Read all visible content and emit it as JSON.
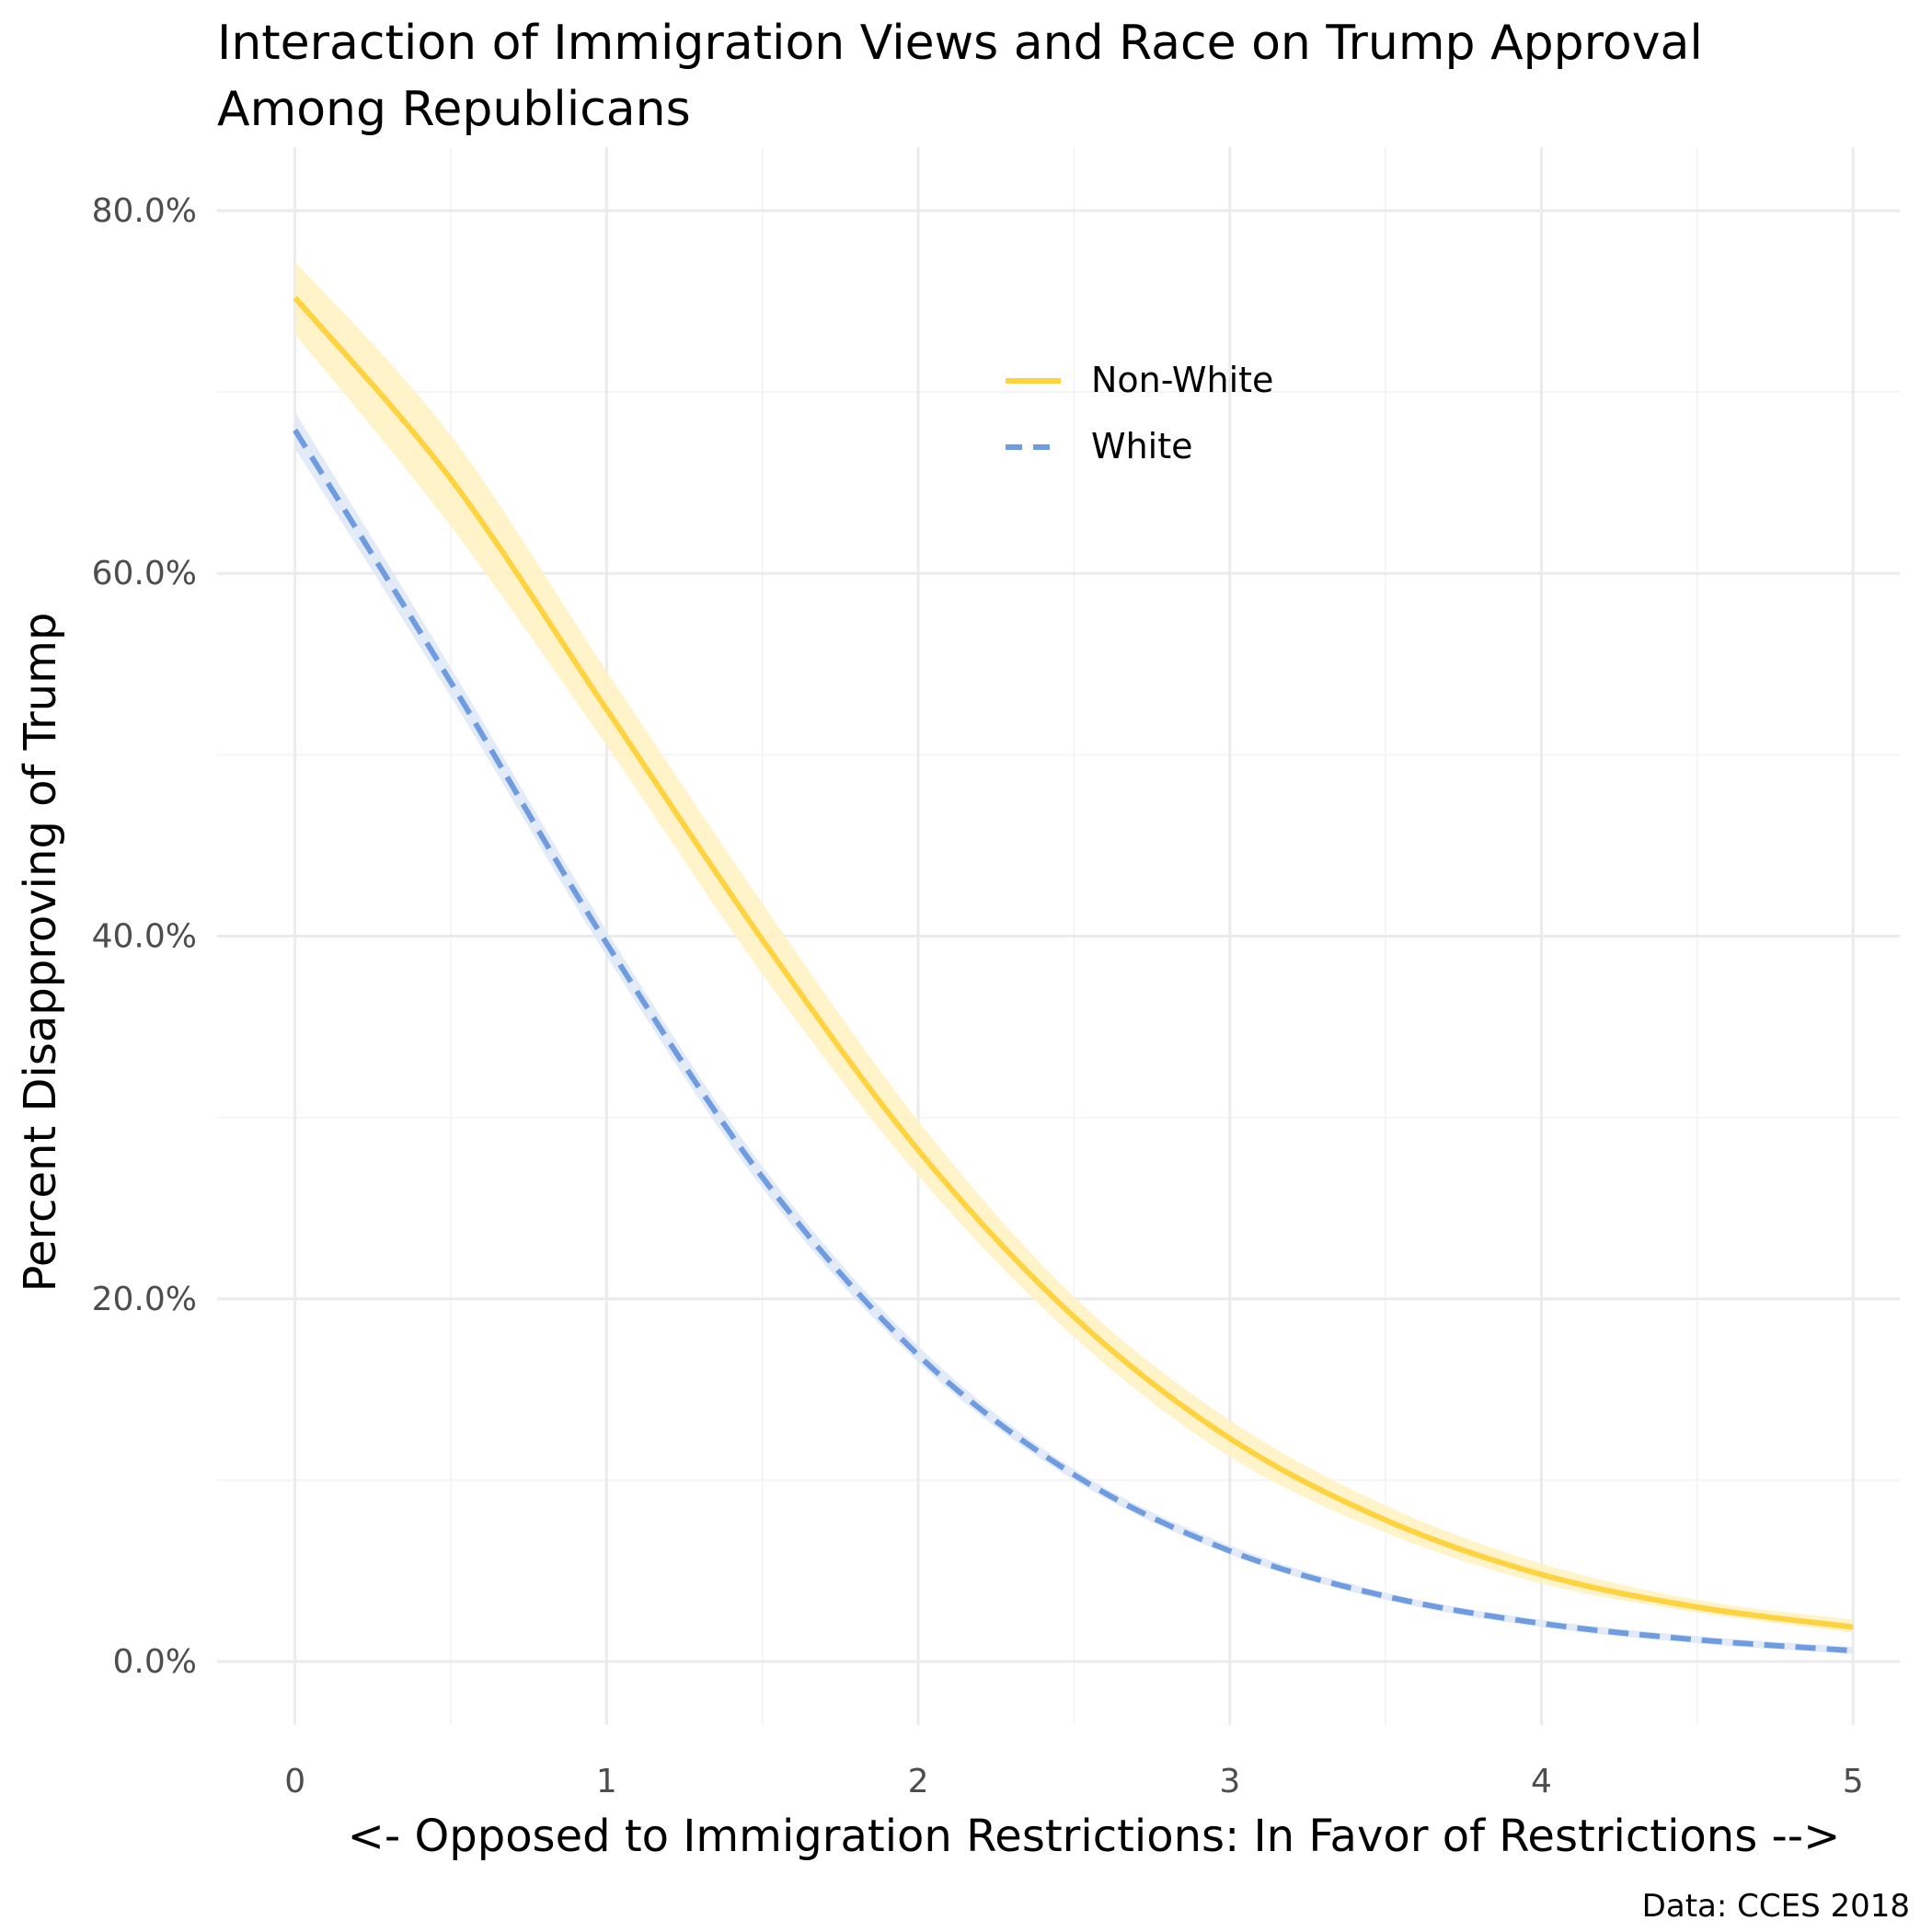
{
  "chart_data": {
    "type": "line",
    "title": "Interaction of Immigration Views and Race on Trump Approval",
    "subtitle": "Among Republicans",
    "xlabel": "<- Opposed to Immigration Restrictions: In Favor of Restrictions -->",
    "ylabel": "Percent Disapproving of Trump",
    "caption": "Data: CCES 2018",
    "xlim": [
      -0.25,
      5.15
    ],
    "ylim": [
      -3.5,
      83.5
    ],
    "x_ticks": [
      0,
      1,
      2,
      3,
      4,
      5
    ],
    "x_tick_labels": [
      "0",
      "1",
      "2",
      "3",
      "4",
      "5"
    ],
    "y_ticks": [
      0,
      20,
      40,
      60,
      80
    ],
    "y_tick_labels": [
      "0.0%",
      "20.0%",
      "40.0%",
      "60.0%",
      "80.0%"
    ],
    "grid": true,
    "legend_position": "top-right",
    "x": [
      0,
      0.5,
      1,
      1.5,
      2,
      2.5,
      3,
      3.5,
      4,
      4.5,
      5
    ],
    "series": [
      {
        "name": "Non-White",
        "color": "#FFD23F",
        "band_color": "#FFF1BF",
        "line_style": "solid",
        "values": [
          75.2,
          65.2,
          52.5,
          39.8,
          28.2,
          19.0,
          12.3,
          7.8,
          4.8,
          3.0,
          1.9
        ],
        "lower": [
          73.2,
          62.6,
          50.5,
          37.9,
          26.8,
          17.9,
          11.3,
          7.1,
          4.3,
          2.7,
          1.6
        ],
        "upper": [
          77.2,
          67.6,
          54.6,
          41.8,
          29.8,
          20.1,
          13.3,
          8.6,
          5.4,
          3.4,
          2.3
        ]
      },
      {
        "name": "White",
        "color": "#6F9BE0",
        "band_color": "#DDE7F6",
        "line_style": "dashed",
        "values": [
          67.9,
          54.0,
          39.6,
          26.7,
          16.9,
          10.3,
          6.1,
          3.6,
          2.1,
          1.2,
          0.6
        ],
        "lower": [
          66.9,
          53.2,
          38.9,
          26.1,
          16.5,
          10.0,
          5.9,
          3.4,
          1.9,
          1.0,
          0.4
        ],
        "upper": [
          68.9,
          54.8,
          40.3,
          27.3,
          17.4,
          10.6,
          6.4,
          3.8,
          2.3,
          1.4,
          0.8
        ]
      }
    ]
  }
}
